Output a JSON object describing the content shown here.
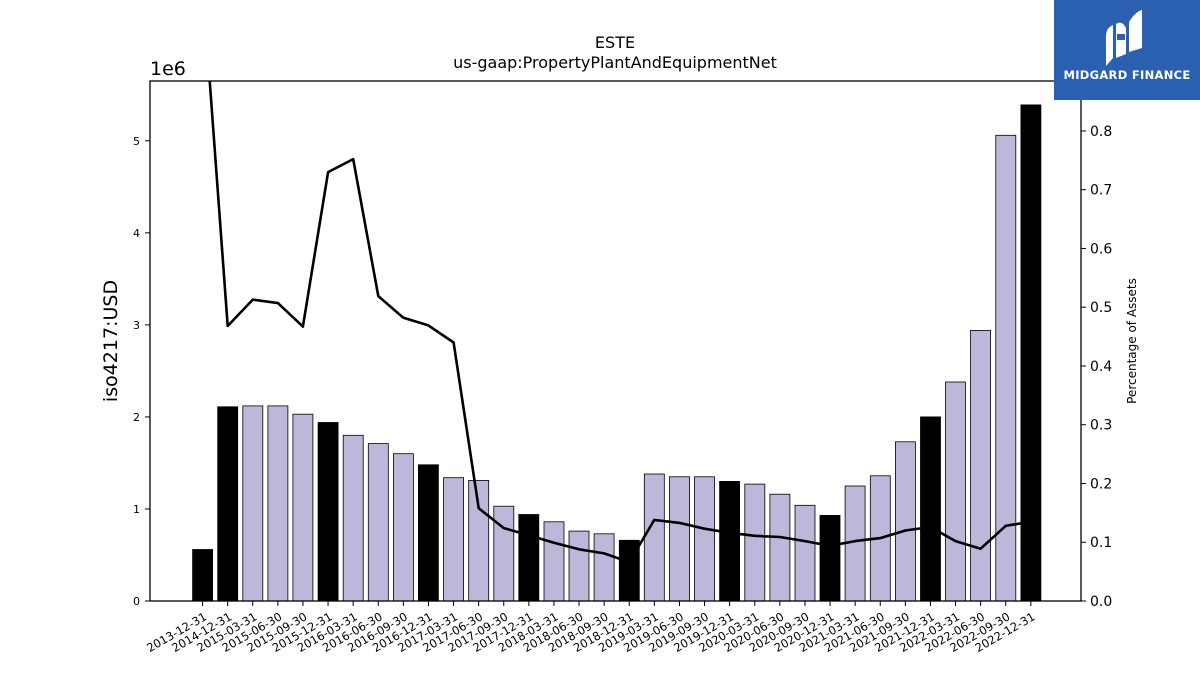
{
  "chart_data": {
    "type": "bar",
    "title": "ESTE",
    "subtitle": "us-gaap:PropertyPlantAndEquipmentNet",
    "ylabel": "iso4217:USD",
    "y2label": "Percentage of Assets",
    "y_offset_text": "1e6",
    "ylim": [
      0,
      5.65
    ],
    "y2lim": [
      0,
      0.885
    ],
    "yticks": [
      "0",
      "1",
      "2",
      "3",
      "4",
      "5"
    ],
    "y2ticks": [
      "0.0",
      "0.1",
      "0.2",
      "0.3",
      "0.4",
      "0.5",
      "0.6",
      "0.7",
      "0.8"
    ],
    "categories": [
      "2013-12-31",
      "2014-12-31",
      "2015-03-31",
      "2015-06-30",
      "2015-09-30",
      "2015-12-31",
      "2016-03-31",
      "2016-06-30",
      "2016-09-30",
      "2016-12-31",
      "2017-03-31",
      "2017-06-30",
      "2017-09-30",
      "2017-12-31",
      "2018-03-31",
      "2018-06-30",
      "2018-09-30",
      "2018-12-31",
      "2019-03-31",
      "2019-06-30",
      "2019-09-30",
      "2019-12-31",
      "2020-03-31",
      "2020-06-30",
      "2020-09-30",
      "2020-12-31",
      "2021-03-31",
      "2021-06-30",
      "2021-09-30",
      "2021-12-31",
      "2022-03-31",
      "2022-06-30",
      "2022-09-30",
      "2022-12-31"
    ],
    "series": [
      {
        "kind": "bar",
        "values": [
          0.56,
          2.11,
          2.12,
          2.12,
          2.03,
          1.94,
          1.8,
          1.71,
          1.6,
          1.48,
          1.34,
          1.31,
          1.03,
          0.94,
          0.86,
          0.76,
          0.73,
          0.66,
          1.38,
          1.35,
          1.35,
          1.3,
          1.27,
          1.16,
          1.04,
          0.93,
          1.25,
          1.36,
          1.73,
          2.0,
          2.38,
          2.94,
          5.06,
          5.39
        ],
        "annual_flags": [
          true,
          true,
          false,
          false,
          false,
          true,
          false,
          false,
          false,
          true,
          false,
          false,
          false,
          true,
          false,
          false,
          false,
          true,
          false,
          false,
          false,
          true,
          false,
          false,
          false,
          true,
          false,
          false,
          false,
          true,
          false,
          false,
          false,
          true
        ]
      },
      {
        "kind": "line",
        "axis": "right",
        "values": [
          1.05,
          0.468,
          0.513,
          0.507,
          0.467,
          0.73,
          0.752,
          0.519,
          0.482,
          0.469,
          0.44,
          0.158,
          0.124,
          0.112,
          0.099,
          0.088,
          0.081,
          0.066,
          0.138,
          0.133,
          0.123,
          0.116,
          0.111,
          0.109,
          0.102,
          0.094,
          0.102,
          0.107,
          0.12,
          0.126,
          0.102,
          0.089,
          0.128,
          0.135
        ]
      }
    ],
    "colors": {
      "annual_bar": "#000000",
      "quarter_bar": "#bdb8d9",
      "line": "#000000"
    }
  },
  "logo": {
    "text": "MIDGARD FINANCE",
    "background": "#2b5fb0"
  }
}
